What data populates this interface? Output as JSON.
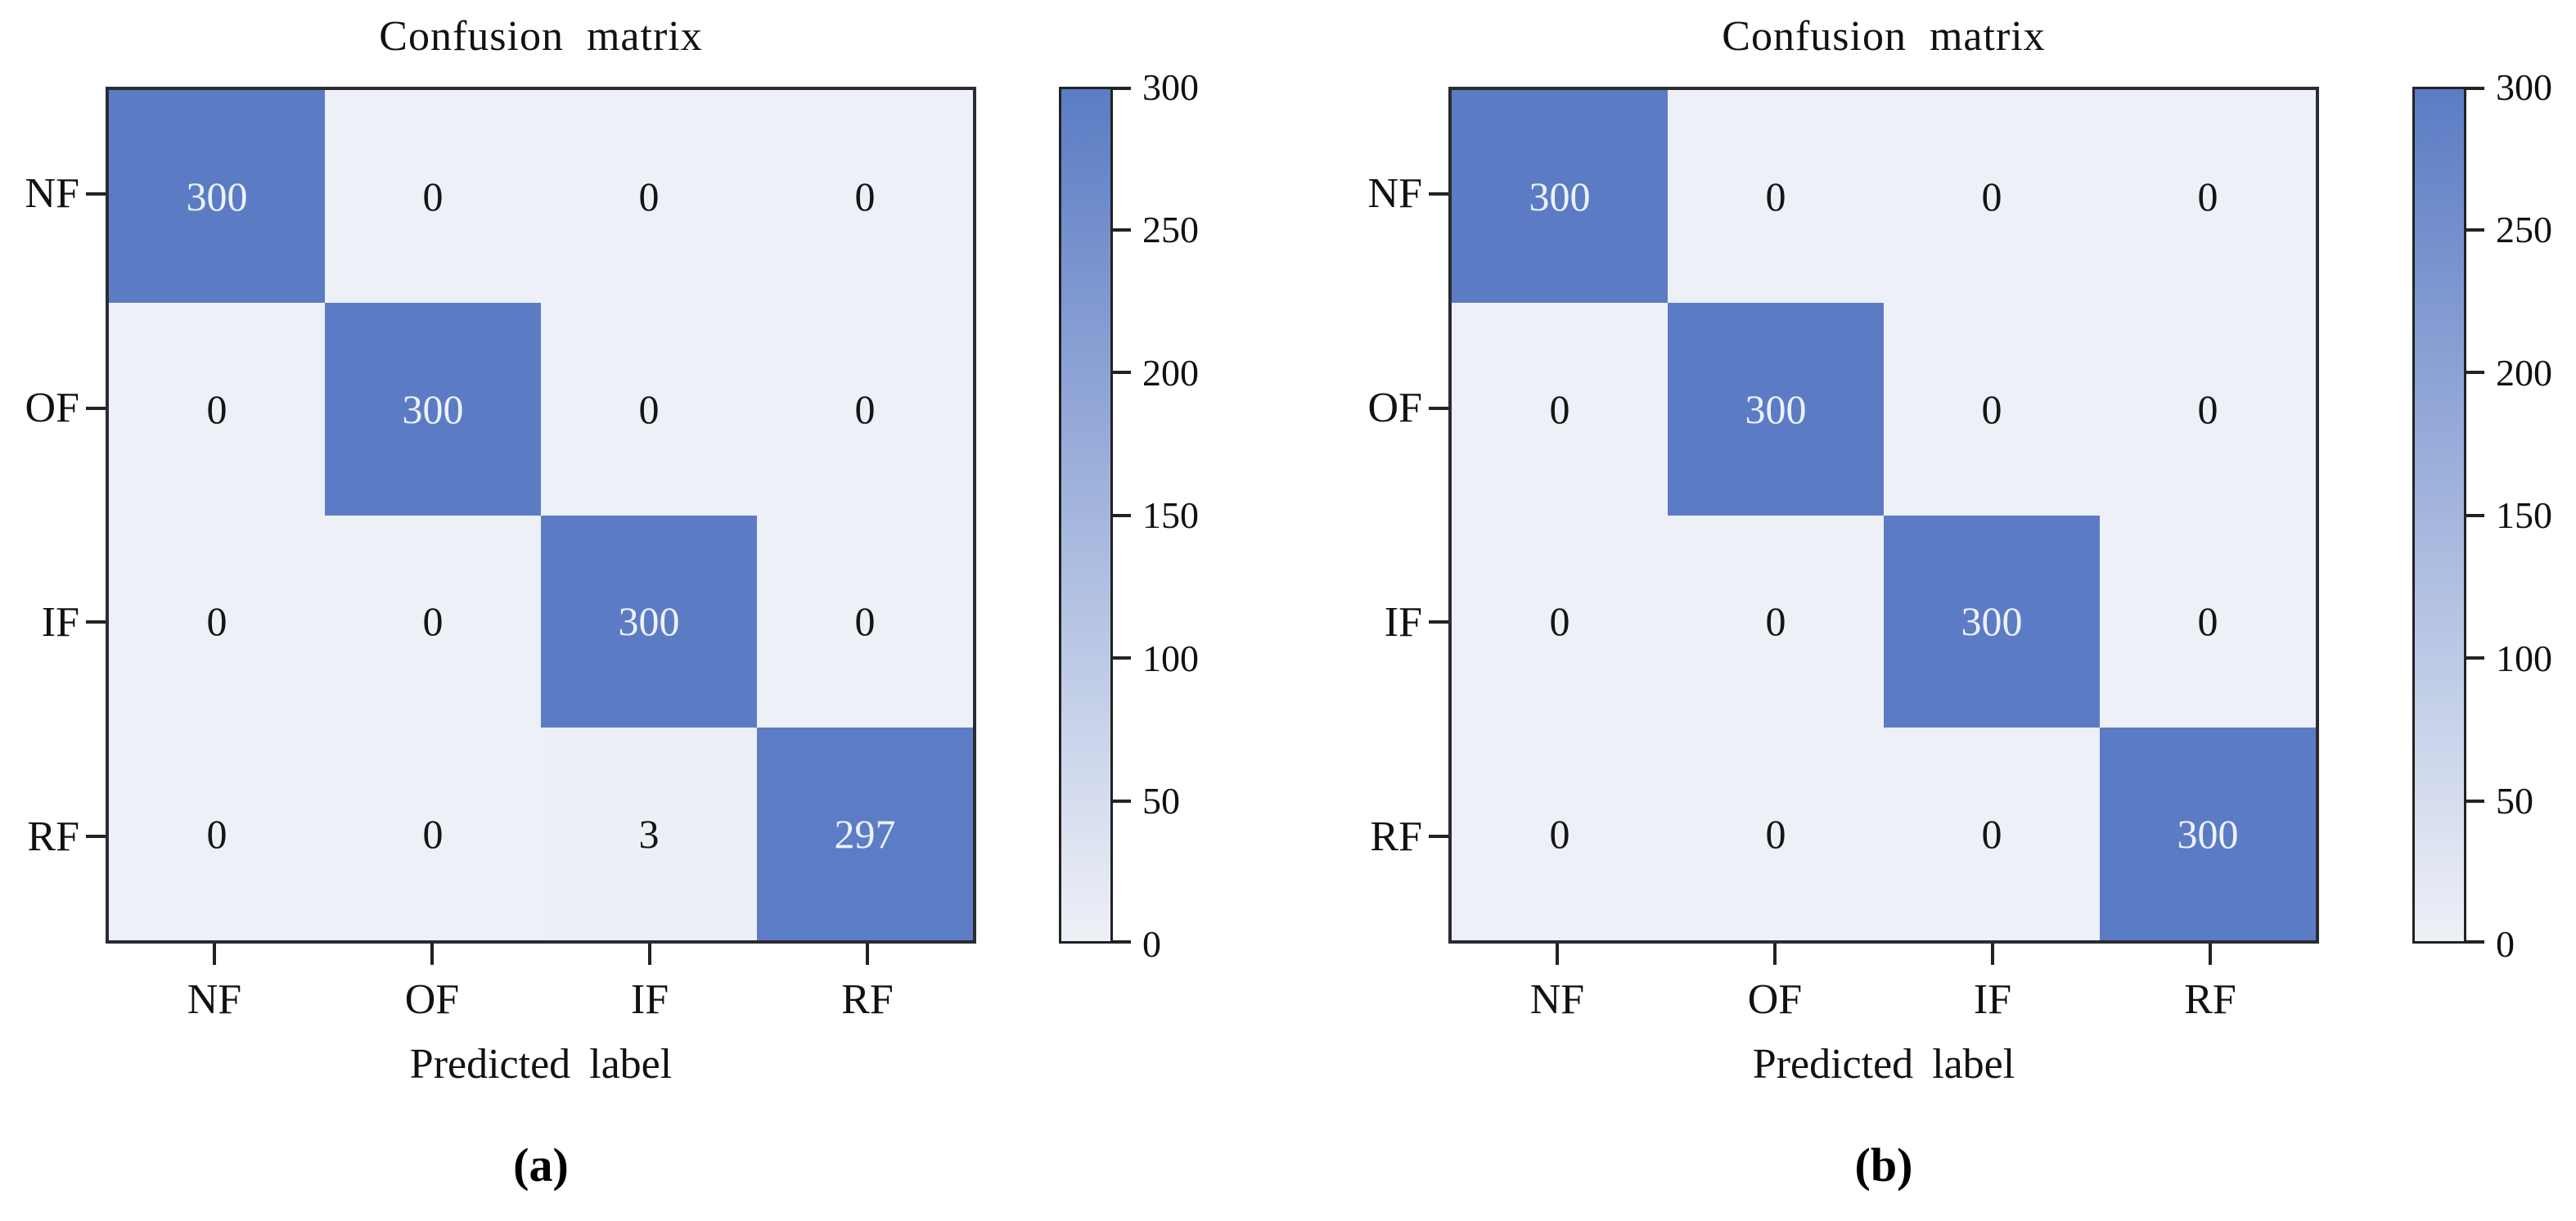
{
  "figure": {
    "colors": {
      "high": "#5b7cc4",
      "low": "#eef0f7",
      "text_on_high": "#edf1fa",
      "text_on_low": "#151515",
      "spine": "#2b2b30",
      "tick": "#222222",
      "label": "#111111"
    }
  },
  "chart_data": [
    {
      "type": "heatmap",
      "title": "Confusion matrix",
      "xlabel": "Predicted label",
      "panel_label": "(a)",
      "x_categories": [
        "NF",
        "OF",
        "IF",
        "RF"
      ],
      "y_categories": [
        "NF",
        "OF",
        "IF",
        "RF"
      ],
      "values": [
        [
          300,
          0,
          0,
          0
        ],
        [
          0,
          300,
          0,
          0
        ],
        [
          0,
          0,
          300,
          0
        ],
        [
          0,
          0,
          3,
          297
        ]
      ],
      "colorbar_range": [
        0,
        300
      ],
      "colorbar_ticks": [
        0,
        50,
        100,
        150,
        200,
        250,
        300
      ],
      "colormap": "white-to-blue",
      "legend_position": "right-colorbar",
      "grid": false
    },
    {
      "type": "heatmap",
      "title": "Confusion matrix",
      "xlabel": "Predicted label",
      "panel_label": "(b)",
      "x_categories": [
        "NF",
        "OF",
        "IF",
        "RF"
      ],
      "y_categories": [
        "NF",
        "OF",
        "IF",
        "RF"
      ],
      "values": [
        [
          300,
          0,
          0,
          0
        ],
        [
          0,
          300,
          0,
          0
        ],
        [
          0,
          0,
          300,
          0
        ],
        [
          0,
          0,
          0,
          300
        ]
      ],
      "colorbar_range": [
        0,
        300
      ],
      "colorbar_ticks": [
        0,
        50,
        100,
        150,
        200,
        250,
        300
      ],
      "colormap": "white-to-blue",
      "legend_position": "right-colorbar",
      "grid": false
    }
  ]
}
